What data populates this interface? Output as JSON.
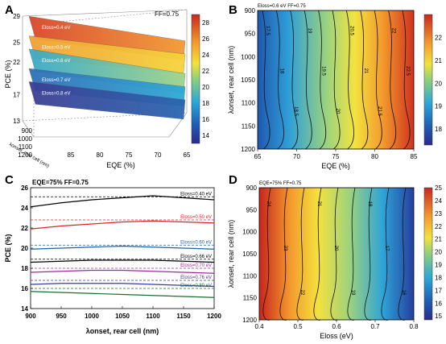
{
  "chart_data": [
    {
      "panel": "A",
      "type": "surface",
      "annotation": "FF=0.75",
      "zlabel": "PCE (%)",
      "xlabel": "EQE (%)",
      "ylabel": "λonset, rear cell (nm)",
      "z_ticks": [
        "29",
        "25",
        "22",
        "17",
        "13"
      ],
      "x_ticks": [
        "85",
        "80",
        "75",
        "70",
        "65"
      ],
      "y_ticks": [
        "900",
        "1000",
        "1100",
        "1200"
      ],
      "colorbar": {
        "ticks": [
          "28",
          "26",
          "24",
          "22",
          "20",
          "18",
          "16",
          "14"
        ],
        "range": [
          13,
          29
        ]
      },
      "surfaces": [
        {
          "label": "Eloss=0.4 eV",
          "pce_range": [
            23,
            28
          ]
        },
        {
          "label": "Eloss=0.5 eV",
          "pce_range": [
            21,
            25
          ]
        },
        {
          "label": "Eloss=0.6 eV",
          "pce_range": [
            18,
            23
          ]
        },
        {
          "label": "Eloss=0.7 eV",
          "pce_range": [
            16,
            20
          ]
        },
        {
          "label": "Eloss=0.8 eV",
          "pce_range": [
            14,
            18
          ]
        }
      ]
    },
    {
      "panel": "B",
      "type": "heatmap",
      "annotation": "Eloss=0.6 eV  FF=0.75",
      "xlabel": "EQE (%)",
      "ylabel": "λonset, rear cell (nm)",
      "x_ticks": [
        "65",
        "70",
        "75",
        "80",
        "85"
      ],
      "y_ticks": [
        "900",
        "950",
        "1000",
        "1050",
        "1100",
        "1150",
        "1200"
      ],
      "colorbar": {
        "ticks": [
          "22",
          "21",
          "20",
          "19",
          "18"
        ],
        "range": [
          17.3,
          23
        ]
      },
      "contour_labels": [
        "17.5",
        "18",
        "18.5",
        "19",
        "19.5",
        "20",
        "20.5",
        "21",
        "21.5",
        "22",
        "22.5"
      ]
    },
    {
      "panel": "C",
      "type": "line",
      "annotation": "EQE=75% FF=0.75",
      "xlabel": "λonset, rear cell (nm)",
      "ylabel": "PCE (%)",
      "x_ticks": [
        "900",
        "950",
        "1000",
        "1050",
        "1100",
        "1150",
        "1200"
      ],
      "y_ticks": [
        "14",
        "16",
        "18",
        "20",
        "22",
        "24",
        "26"
      ],
      "xlim": [
        900,
        1200
      ],
      "ylim": [
        14,
        26
      ],
      "x": [
        900,
        950,
        1000,
        1050,
        1100,
        1150,
        1200
      ],
      "series": [
        {
          "name": "Eloss=0.40 eV",
          "color": "#000000",
          "values": [
            24.1,
            24.5,
            24.8,
            25.0,
            25.2,
            25.0,
            24.8
          ],
          "ref": 25.1
        },
        {
          "name": "Eloss=0.50 eV",
          "color": "#d62728",
          "values": [
            21.9,
            22.2,
            22.4,
            22.6,
            22.7,
            22.6,
            22.5
          ],
          "ref": 22.8
        },
        {
          "name": "Eloss=0.60 eV",
          "color": "#1f5fa0",
          "values": [
            19.9,
            20.0,
            20.1,
            20.2,
            20.1,
            20.0,
            19.9
          ],
          "ref": 20.3
        },
        {
          "name": "Eloss=0.66 eV",
          "color": "#000000",
          "values": [
            18.6,
            18.7,
            18.8,
            18.8,
            18.8,
            18.7,
            18.6
          ],
          "ref": 18.9
        },
        {
          "name": "Eloss=0.70 eV",
          "color": "#9b2d9b",
          "values": [
            17.6,
            17.7,
            17.8,
            17.8,
            17.7,
            17.6,
            17.5
          ],
          "ref": 18.0
        },
        {
          "name": "Eloss=0.76 eV",
          "color": "#3a3a9a",
          "values": [
            16.4,
            16.5,
            16.5,
            16.5,
            16.4,
            16.3,
            16.2
          ],
          "ref": 16.8
        },
        {
          "name": "Eloss=0.80 eV",
          "color": "#1a6e2e",
          "values": [
            15.7,
            15.6,
            15.5,
            15.4,
            15.3,
            15.2,
            15.1
          ],
          "ref": 16.0
        }
      ]
    },
    {
      "panel": "D",
      "type": "heatmap",
      "annotation": "EQE=75% FF=0.75",
      "xlabel": "Eloss (eV)",
      "ylabel": "λonset, rear cell (nm)",
      "x_ticks": [
        "0.4",
        "0.5",
        "0.6",
        "0.7",
        "0.8"
      ],
      "y_ticks": [
        "900",
        "950",
        "1000",
        "1050",
        "1100",
        "1150",
        "1200"
      ],
      "colorbar": {
        "ticks": [
          "25",
          "24",
          "23",
          "22",
          "21",
          "20",
          "19",
          "18",
          "17",
          "16",
          "15"
        ],
        "range": [
          14.7,
          25
        ]
      },
      "contour_labels": [
        "24",
        "23",
        "22",
        "21",
        "20",
        "19",
        "18",
        "17",
        "16"
      ]
    }
  ]
}
